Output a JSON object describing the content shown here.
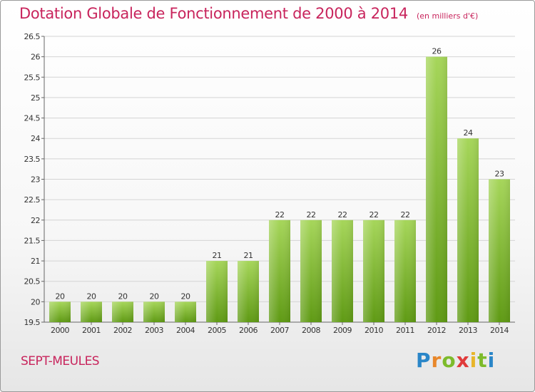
{
  "header": {
    "title": "Dotation Globale de Fonctionnement de 2000 à 2014",
    "unit": "(en milliers d'€)"
  },
  "footer": {
    "commune": "SEPT-MEULES",
    "logo_text": "Proxiti"
  },
  "colors": {
    "title": "#c8245c",
    "bar_top": "#a6d65a",
    "bar_bottom": "#5f9a14"
  },
  "chart_data": {
    "type": "bar",
    "title": "Dotation Globale de Fonctionnement de 2000 à 2014",
    "subtitle": "(en milliers d'€)",
    "categories": [
      "2000",
      "2001",
      "2002",
      "2003",
      "2004",
      "2005",
      "2006",
      "2007",
      "2008",
      "2009",
      "2010",
      "2011",
      "2012",
      "2013",
      "2014"
    ],
    "values": [
      20,
      20,
      20,
      20,
      20,
      21,
      21,
      22,
      22,
      22,
      22,
      22,
      26,
      24,
      23
    ],
    "data_labels": [
      "20",
      "20",
      "20",
      "20",
      "20",
      "21",
      "21",
      "22",
      "22",
      "22",
      "22",
      "22",
      "26",
      "24",
      "23"
    ],
    "ylim": [
      19.5,
      26.5
    ],
    "yticks": [
      "19.5",
      "20",
      "20.5",
      "21",
      "21.5",
      "22",
      "22.5",
      "23",
      "23.5",
      "24",
      "24.5",
      "25",
      "25.5",
      "26",
      "26.5"
    ],
    "grid": true,
    "legend": "none"
  }
}
